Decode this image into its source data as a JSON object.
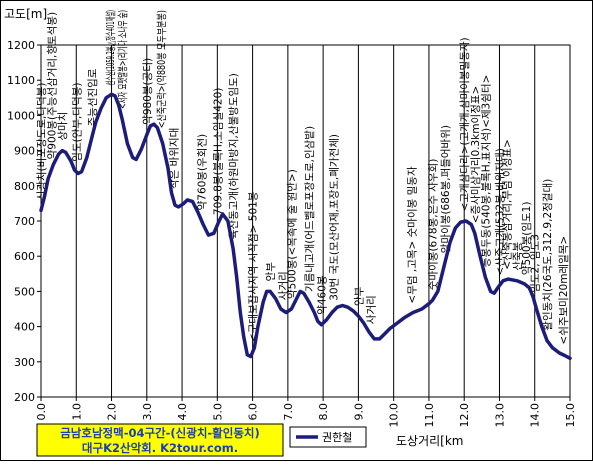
{
  "chart_data": {
    "type": "line",
    "title": "",
    "xlabel": "도상거리[km",
    "ylabel": "고도[m]",
    "xlim": [
      0,
      15
    ],
    "ylim": [
      200,
      1200
    ],
    "x_ticks": [
      "0.0",
      "1.0",
      "2.0",
      "3.0",
      "4.0",
      "5.0",
      "6.0",
      "7.0",
      "8.0",
      "9.0",
      "10.0",
      "11.0",
      "12.0",
      "13.0",
      "14.0",
      "15.0"
    ],
    "y_ticks": [
      "200",
      "300",
      "400",
      "500",
      "600",
      "700",
      "800",
      "900",
      "1000",
      "1100",
      "1200"
    ],
    "grid": "vertical",
    "series": [
      {
        "name": "권한철",
        "color": "#1c1c7a",
        "points": [
          [
            0.0,
            730
          ],
          [
            0.1,
            770
          ],
          [
            0.2,
            820
          ],
          [
            0.35,
            860
          ],
          [
            0.5,
            890
          ],
          [
            0.6,
            900
          ],
          [
            0.7,
            895
          ],
          [
            0.85,
            870
          ],
          [
            0.95,
            845
          ],
          [
            1.05,
            835
          ],
          [
            1.15,
            840
          ],
          [
            1.3,
            880
          ],
          [
            1.45,
            940
          ],
          [
            1.55,
            980
          ],
          [
            1.7,
            1020
          ],
          [
            1.85,
            1050
          ],
          [
            2.0,
            1060
          ],
          [
            2.1,
            1055
          ],
          [
            2.2,
            1030
          ],
          [
            2.3,
            990
          ],
          [
            2.45,
            920
          ],
          [
            2.6,
            880
          ],
          [
            2.7,
            875
          ],
          [
            2.85,
            905
          ],
          [
            3.0,
            945
          ],
          [
            3.1,
            970
          ],
          [
            3.2,
            975
          ],
          [
            3.3,
            965
          ],
          [
            3.45,
            920
          ],
          [
            3.6,
            850
          ],
          [
            3.7,
            780
          ],
          [
            3.8,
            745
          ],
          [
            3.9,
            740
          ],
          [
            4.05,
            750
          ],
          [
            4.15,
            760
          ],
          [
            4.3,
            755
          ],
          [
            4.45,
            725
          ],
          [
            4.6,
            690
          ],
          [
            4.75,
            660
          ],
          [
            4.9,
            665
          ],
          [
            5.05,
            700
          ],
          [
            5.15,
            720
          ],
          [
            5.3,
            700
          ],
          [
            5.45,
            620
          ],
          [
            5.55,
            540
          ],
          [
            5.65,
            440
          ],
          [
            5.75,
            370
          ],
          [
            5.85,
            320
          ],
          [
            5.95,
            315
          ],
          [
            6.05,
            340
          ],
          [
            6.15,
            400
          ],
          [
            6.3,
            470
          ],
          [
            6.4,
            500
          ],
          [
            6.5,
            500
          ],
          [
            6.65,
            480
          ],
          [
            6.8,
            450
          ],
          [
            6.95,
            440
          ],
          [
            7.1,
            450
          ],
          [
            7.25,
            480
          ],
          [
            7.35,
            500
          ],
          [
            7.45,
            495
          ],
          [
            7.6,
            470
          ],
          [
            7.75,
            440
          ],
          [
            7.85,
            415
          ],
          [
            7.95,
            405
          ],
          [
            8.1,
            420
          ],
          [
            8.25,
            440
          ],
          [
            8.4,
            455
          ],
          [
            8.55,
            460
          ],
          [
            8.7,
            455
          ],
          [
            8.85,
            445
          ],
          [
            9.0,
            430
          ],
          [
            9.15,
            410
          ],
          [
            9.3,
            385
          ],
          [
            9.45,
            365
          ],
          [
            9.6,
            365
          ],
          [
            9.75,
            380
          ],
          [
            9.9,
            395
          ],
          [
            10.1,
            410
          ],
          [
            10.3,
            425
          ],
          [
            10.55,
            440
          ],
          [
            10.8,
            450
          ],
          [
            11.0,
            465
          ],
          [
            11.1,
            475
          ],
          [
            11.25,
            500
          ],
          [
            11.45,
            580
          ],
          [
            11.6,
            640
          ],
          [
            11.75,
            680
          ],
          [
            11.9,
            697
          ],
          [
            12.05,
            700
          ],
          [
            12.2,
            690
          ],
          [
            12.3,
            665
          ],
          [
            12.45,
            600
          ],
          [
            12.6,
            540
          ],
          [
            12.75,
            500
          ],
          [
            12.85,
            495
          ],
          [
            12.95,
            510
          ],
          [
            13.1,
            530
          ],
          [
            13.25,
            535
          ],
          [
            13.5,
            530
          ],
          [
            13.7,
            522
          ],
          [
            13.85,
            510
          ],
          [
            13.95,
            485
          ],
          [
            14.05,
            450
          ],
          [
            14.2,
            400
          ],
          [
            14.35,
            360
          ],
          [
            14.5,
            340
          ],
          [
            14.7,
            325
          ],
          [
            14.85,
            318
          ],
          [
            15.0,
            310
          ]
        ]
      }
    ],
    "annotations": [
      {
        "x": 0.0,
        "text": "신광치(비포장도로,다덕봉)"
      },
      {
        "x": 0.3,
        "text": "약900봉(주능선삼거리,향토석봉)"
      },
      {
        "x": 0.6,
        "text": "상마치"
      },
      {
        "x": 1.0,
        "text": "임도(안부,다덕봉)"
      },
      {
        "x": 1.45,
        "text": "주능선진입로"
      },
      {
        "x": 1.95,
        "text": "선수산(1059.2봉,△정수401재설)"
      },
      {
        "x": 2.3,
        "text": "<서자 묘팻말봉>(리기다 소나무 숲)"
      },
      {
        "x": 3.0,
        "text": "약980봉(공터)"
      },
      {
        "x": 3.4,
        "text": "<산죽군락>(약880봉 모두부분봉)"
      },
      {
        "x": 3.75,
        "text": "작은 바위지대"
      },
      {
        "x": 4.55,
        "text": "약760봉(우회전)"
      },
      {
        "x": 5.0,
        "text": "709.8봉(불록H,소임실420)"
      },
      {
        "x": 5.45,
        "text": "육산동고개(하원마방지,산불방도임도)"
      },
      {
        "x": 6.0,
        "text": "<구대보잡사지역 시작점> 501봉"
      },
      {
        "x": 6.5,
        "text": "안부"
      },
      {
        "x": 6.85,
        "text": "사거리"
      },
      {
        "x": 7.1,
        "text": "약500봉(<목족에 줄 원안>)"
      },
      {
        "x": 7.6,
        "text": "기름내고개(어드벨로포장도로,인삼밭)"
      },
      {
        "x": 7.95,
        "text": "약460봉"
      },
      {
        "x": 8.3,
        "text": "30번 국도(모산어재,포장도,폐가전체)"
      },
      {
        "x": 9.0,
        "text": "안부"
      },
      {
        "x": 9.35,
        "text": "사거리"
      },
      {
        "x": 10.5,
        "text": "<무덤 ,고목> 숫마이봉 밀동자"
      },
      {
        "x": 11.1,
        "text": "숫마이봉(678봉,은수 사우회)"
      },
      {
        "x": 11.45,
        "text": "암마이봉(686봉,퍼들어바위)"
      },
      {
        "x": 12.0,
        "text": "<고개삼다리>(고개개,삼마이봉밀동자)"
      },
      {
        "x": 12.3,
        "text": "<증사미삼거리0.3km이정표>"
      },
      {
        "x": 12.6,
        "text": "등봉두동(540봉,불록H,표지석)<제3쉼터>"
      },
      {
        "x": 13.0,
        "text": "<산죽고개(532봉,바위지대)"
      },
      {
        "x": 13.2,
        "text": "<산죽봉삼거리,무덤 이정표>"
      },
      {
        "x": 13.5,
        "text": "산죽봉"
      },
      {
        "x": 13.75,
        "text": "약500봉(임도1)"
      },
      {
        "x": 14.0,
        "text": "임도2, 임도3"
      },
      {
        "x": 14.35,
        "text": "활인동치(26국도,312.9,2정걸대)"
      },
      {
        "x": 14.8,
        "text": "<쉬주보미20m레일목>"
      }
    ],
    "caption_lines": [
      "금남호남정맥-04구간-(신광치-활인동치)",
      "대구K2산악회. K2tour.com."
    ],
    "legend": "bottom-center"
  }
}
